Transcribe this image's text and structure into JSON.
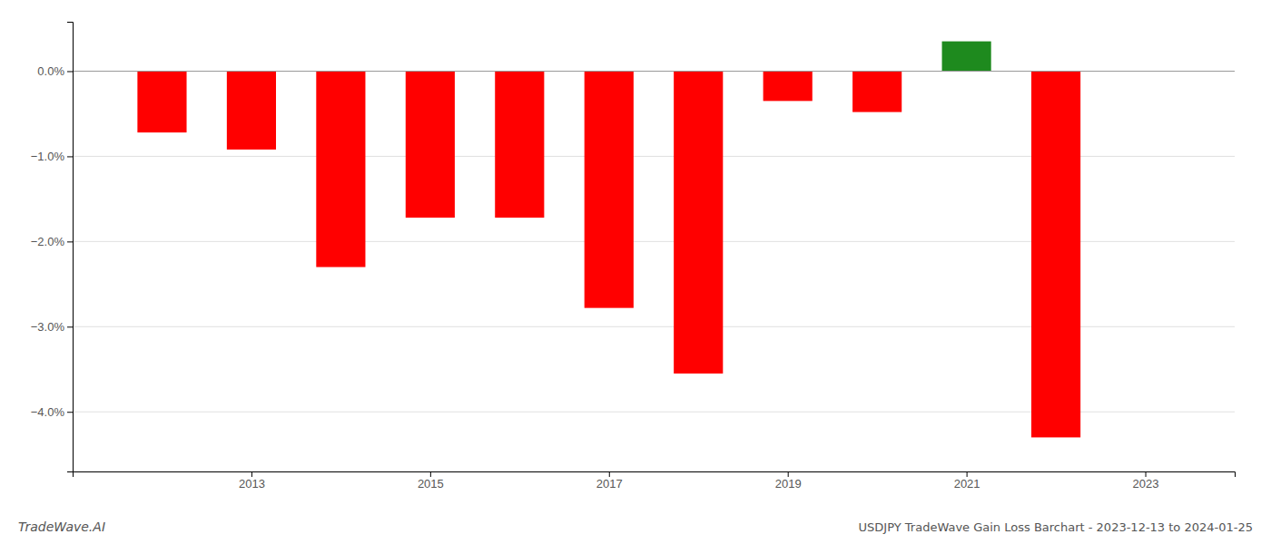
{
  "chart_data": {
    "type": "bar",
    "title": "USDJPY TradeWave Gain Loss Barchart - 2023-12-13 to 2024-01-25",
    "annotations": [
      "TradeWave.AI"
    ],
    "x": [
      2012,
      2013,
      2014,
      2015,
      2016,
      2017,
      2018,
      2019,
      2020,
      2021,
      2022
    ],
    "values": [
      -0.72,
      -0.92,
      -2.3,
      -1.72,
      -1.72,
      -2.78,
      -3.55,
      -0.35,
      -0.48,
      0.35,
      -4.3
    ],
    "colors": [
      "#ff0000",
      "#ff0000",
      "#ff0000",
      "#ff0000",
      "#ff0000",
      "#ff0000",
      "#ff0000",
      "#ff0000",
      "#ff0000",
      "#1e8a1e",
      "#ff0000"
    ],
    "xlim": [
      2011.0,
      2024.0
    ],
    "xticks": [
      2013,
      2015,
      2017,
      2019,
      2021,
      2023
    ],
    "ylim": [
      -4.7,
      0.58
    ],
    "yticks": [
      {
        "value": 0.0,
        "label": "0.0%"
      },
      {
        "value": -1.0,
        "label": "−1.0%"
      },
      {
        "value": -2.0,
        "label": "−2.0%"
      },
      {
        "value": -3.0,
        "label": "−3.0%"
      },
      {
        "value": -4.0,
        "label": "−4.0%"
      }
    ],
    "grid": true
  }
}
